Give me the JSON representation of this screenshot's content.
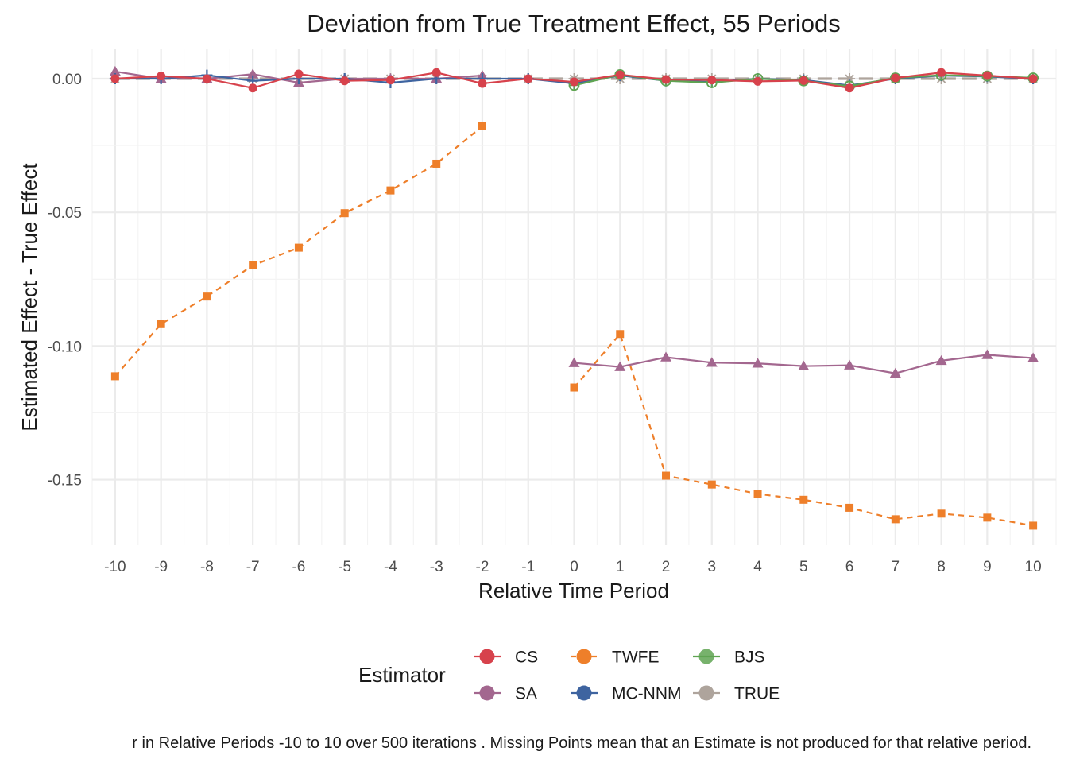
{
  "chart_data": {
    "type": "line",
    "title": "Deviation from True Treatment Effect, 55 Periods",
    "xlabel": "Relative Time Period",
    "ylabel": "Estimated Effect - True Effect",
    "caption": "r in Relative Periods -10 to 10 over 500 iterations . Missing Points mean that an Estimate is not produced for that relative period.",
    "x": [
      -10,
      -9,
      -8,
      -7,
      -6,
      -5,
      -4,
      -3,
      -2,
      -1,
      0,
      1,
      2,
      3,
      4,
      5,
      6,
      7,
      8,
      9,
      10
    ],
    "x_tick_labels": [
      "-10",
      "-9",
      "-8",
      "-7",
      "-6",
      "-5",
      "-4",
      "-3",
      "-2",
      "-1",
      "0",
      "1",
      "2",
      "3",
      "4",
      "5",
      "6",
      "7",
      "8",
      "9",
      "10"
    ],
    "y_ticks": [
      0,
      -0.05,
      -0.1,
      -0.15
    ],
    "y_tick_labels": [
      "0.00",
      "-0.05",
      "-0.10",
      "-0.15"
    ],
    "xlim": [
      -10.5,
      10.5
    ],
    "ylim": [
      -0.1745,
      0.011
    ],
    "grid": true,
    "legend": {
      "title": "Estimator",
      "placement": "bottom",
      "rows": [
        [
          "CS",
          "TWFE",
          "BJS"
        ],
        [
          "SA",
          "MC-NNM",
          "TRUE"
        ]
      ]
    },
    "series": [
      {
        "name": "CS",
        "color": "#D7424C",
        "marker": "circle",
        "dash": "solid",
        "values": [
          0.0,
          0.001,
          0.0,
          -0.0035,
          0.0018,
          -0.0008,
          -0.0005,
          0.0023,
          -0.0018,
          0.0,
          -0.0012,
          0.0015,
          -0.0003,
          -0.0005,
          -0.001,
          -0.0007,
          -0.0035,
          0.0003,
          0.0023,
          0.0012,
          0.0
        ]
      },
      {
        "name": "SA",
        "color": "#A3678F",
        "marker": "triangle",
        "dash": "solid",
        "values": [
          0.0027,
          0.0,
          0.0,
          0.0017,
          -0.0015,
          0.0,
          0.0,
          0.0,
          0.0012,
          null,
          -0.1063,
          -0.1078,
          -0.1042,
          -0.1062,
          -0.1065,
          -0.1075,
          -0.1072,
          -0.1102,
          -0.1055,
          -0.1033,
          -0.1045
        ]
      },
      {
        "name": "TWFE",
        "color": "#EE7F2A",
        "marker": "square",
        "dash": "dashed",
        "values": [
          -0.1113,
          -0.0918,
          -0.0815,
          -0.0698,
          -0.0632,
          -0.0503,
          -0.0418,
          -0.0318,
          -0.0178,
          null,
          -0.1155,
          -0.0955,
          -0.1485,
          -0.1518,
          -0.1553,
          -0.1575,
          -0.1605,
          -0.1648,
          -0.1627,
          -0.1642,
          -0.1672
        ]
      },
      {
        "name": "MC-NNM",
        "color": "#3E64A0",
        "marker": "plus",
        "dash": "solid",
        "values": [
          0.0,
          0.0,
          0.0013,
          -0.0008,
          0.0,
          0.0,
          -0.0015,
          0.0,
          0.0,
          0.0,
          -0.0018,
          0.0012,
          -0.0008,
          -0.0012,
          0.0,
          -0.0005,
          -0.0025,
          0.0,
          0.0012,
          0.0008,
          0.0
        ]
      },
      {
        "name": "BJS",
        "color": "#5FA452",
        "marker": "circle-plus",
        "dash": "solid",
        "values": [
          null,
          null,
          null,
          null,
          null,
          null,
          null,
          null,
          null,
          null,
          -0.0025,
          0.0015,
          -0.0008,
          -0.0015,
          0.0,
          -0.0008,
          -0.0028,
          0.0003,
          0.0013,
          0.001,
          0.0003
        ]
      },
      {
        "name": "TRUE",
        "color": "#AEA49C",
        "marker": "asterisk",
        "dash": "longdash",
        "values": [
          0,
          0,
          0,
          0,
          0,
          0,
          0,
          0,
          0,
          0,
          0,
          0,
          0,
          0,
          0,
          0,
          0,
          0,
          0,
          0,
          0
        ]
      }
    ]
  }
}
